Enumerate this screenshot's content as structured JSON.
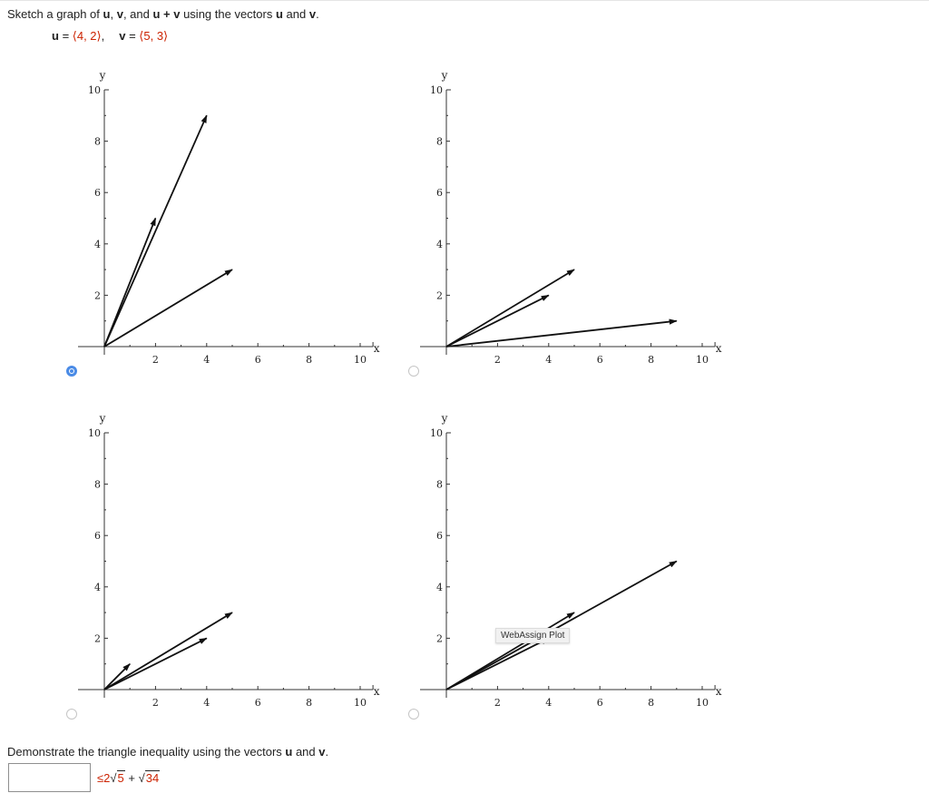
{
  "question1": {
    "pre": "Sketch a graph of ",
    "u": "u",
    "comma1": ", ",
    "v": "v",
    "and": ", and ",
    "upv": "u + v",
    "post": " using the vectors ",
    "u2": "u",
    "and2": " and ",
    "v2": "v",
    "end": "."
  },
  "vectors": {
    "u_label": "u",
    "u_eq": " = ",
    "u_value": "⟨4, 2⟩",
    "sep": ",",
    "v_label": "v",
    "v_eq": " = ",
    "v_value": "⟨5, 3⟩"
  },
  "plots": [
    {
      "id": "plot-a",
      "selected": true,
      "x_label": "x",
      "y_label": "y",
      "x_ticks": [
        "2",
        "4",
        "6",
        "8",
        "10"
      ],
      "y_ticks": [
        "2",
        "4",
        "6",
        "8",
        "10"
      ],
      "arrows": [
        [
          4,
          9
        ],
        [
          5,
          3
        ],
        [
          2,
          5
        ]
      ]
    },
    {
      "id": "plot-b",
      "selected": false,
      "x_label": "x",
      "y_label": "y",
      "x_ticks": [
        "2",
        "4",
        "6",
        "8",
        "10"
      ],
      "y_ticks": [
        "2",
        "4",
        "6",
        "8",
        "10"
      ],
      "arrows": [
        [
          5,
          3
        ],
        [
          4,
          2
        ],
        [
          9,
          1
        ]
      ]
    },
    {
      "id": "plot-c",
      "selected": false,
      "x_label": "x",
      "y_label": "y",
      "x_ticks": [
        "2",
        "4",
        "6",
        "8",
        "10"
      ],
      "y_ticks": [
        "2",
        "4",
        "6",
        "8",
        "10"
      ],
      "arrows": [
        [
          1,
          1
        ],
        [
          5,
          3
        ],
        [
          4,
          2
        ]
      ]
    },
    {
      "id": "plot-d",
      "selected": false,
      "x_label": "x",
      "y_label": "y",
      "x_ticks": [
        "2",
        "4",
        "6",
        "8",
        "10"
      ],
      "y_ticks": [
        "2",
        "4",
        "6",
        "8",
        "10"
      ],
      "arrows": [
        [
          9,
          5
        ],
        [
          5,
          3
        ],
        [
          4,
          2
        ]
      ],
      "tooltip": "WebAssign Plot"
    }
  ],
  "question2": {
    "pre": "Demonstrate the triangle inequality using the vectors ",
    "u": "u",
    "and": " and ",
    "v": "v",
    "end": "."
  },
  "answer": {
    "value": "",
    "leq": "≤",
    "coef": "2",
    "sqrt_sym": "√",
    "rad1": "5",
    "plus": " + ",
    "rad2": "34"
  },
  "colors": {
    "accent_red": "#cc2200",
    "radio_blue": "#4a8be6"
  }
}
